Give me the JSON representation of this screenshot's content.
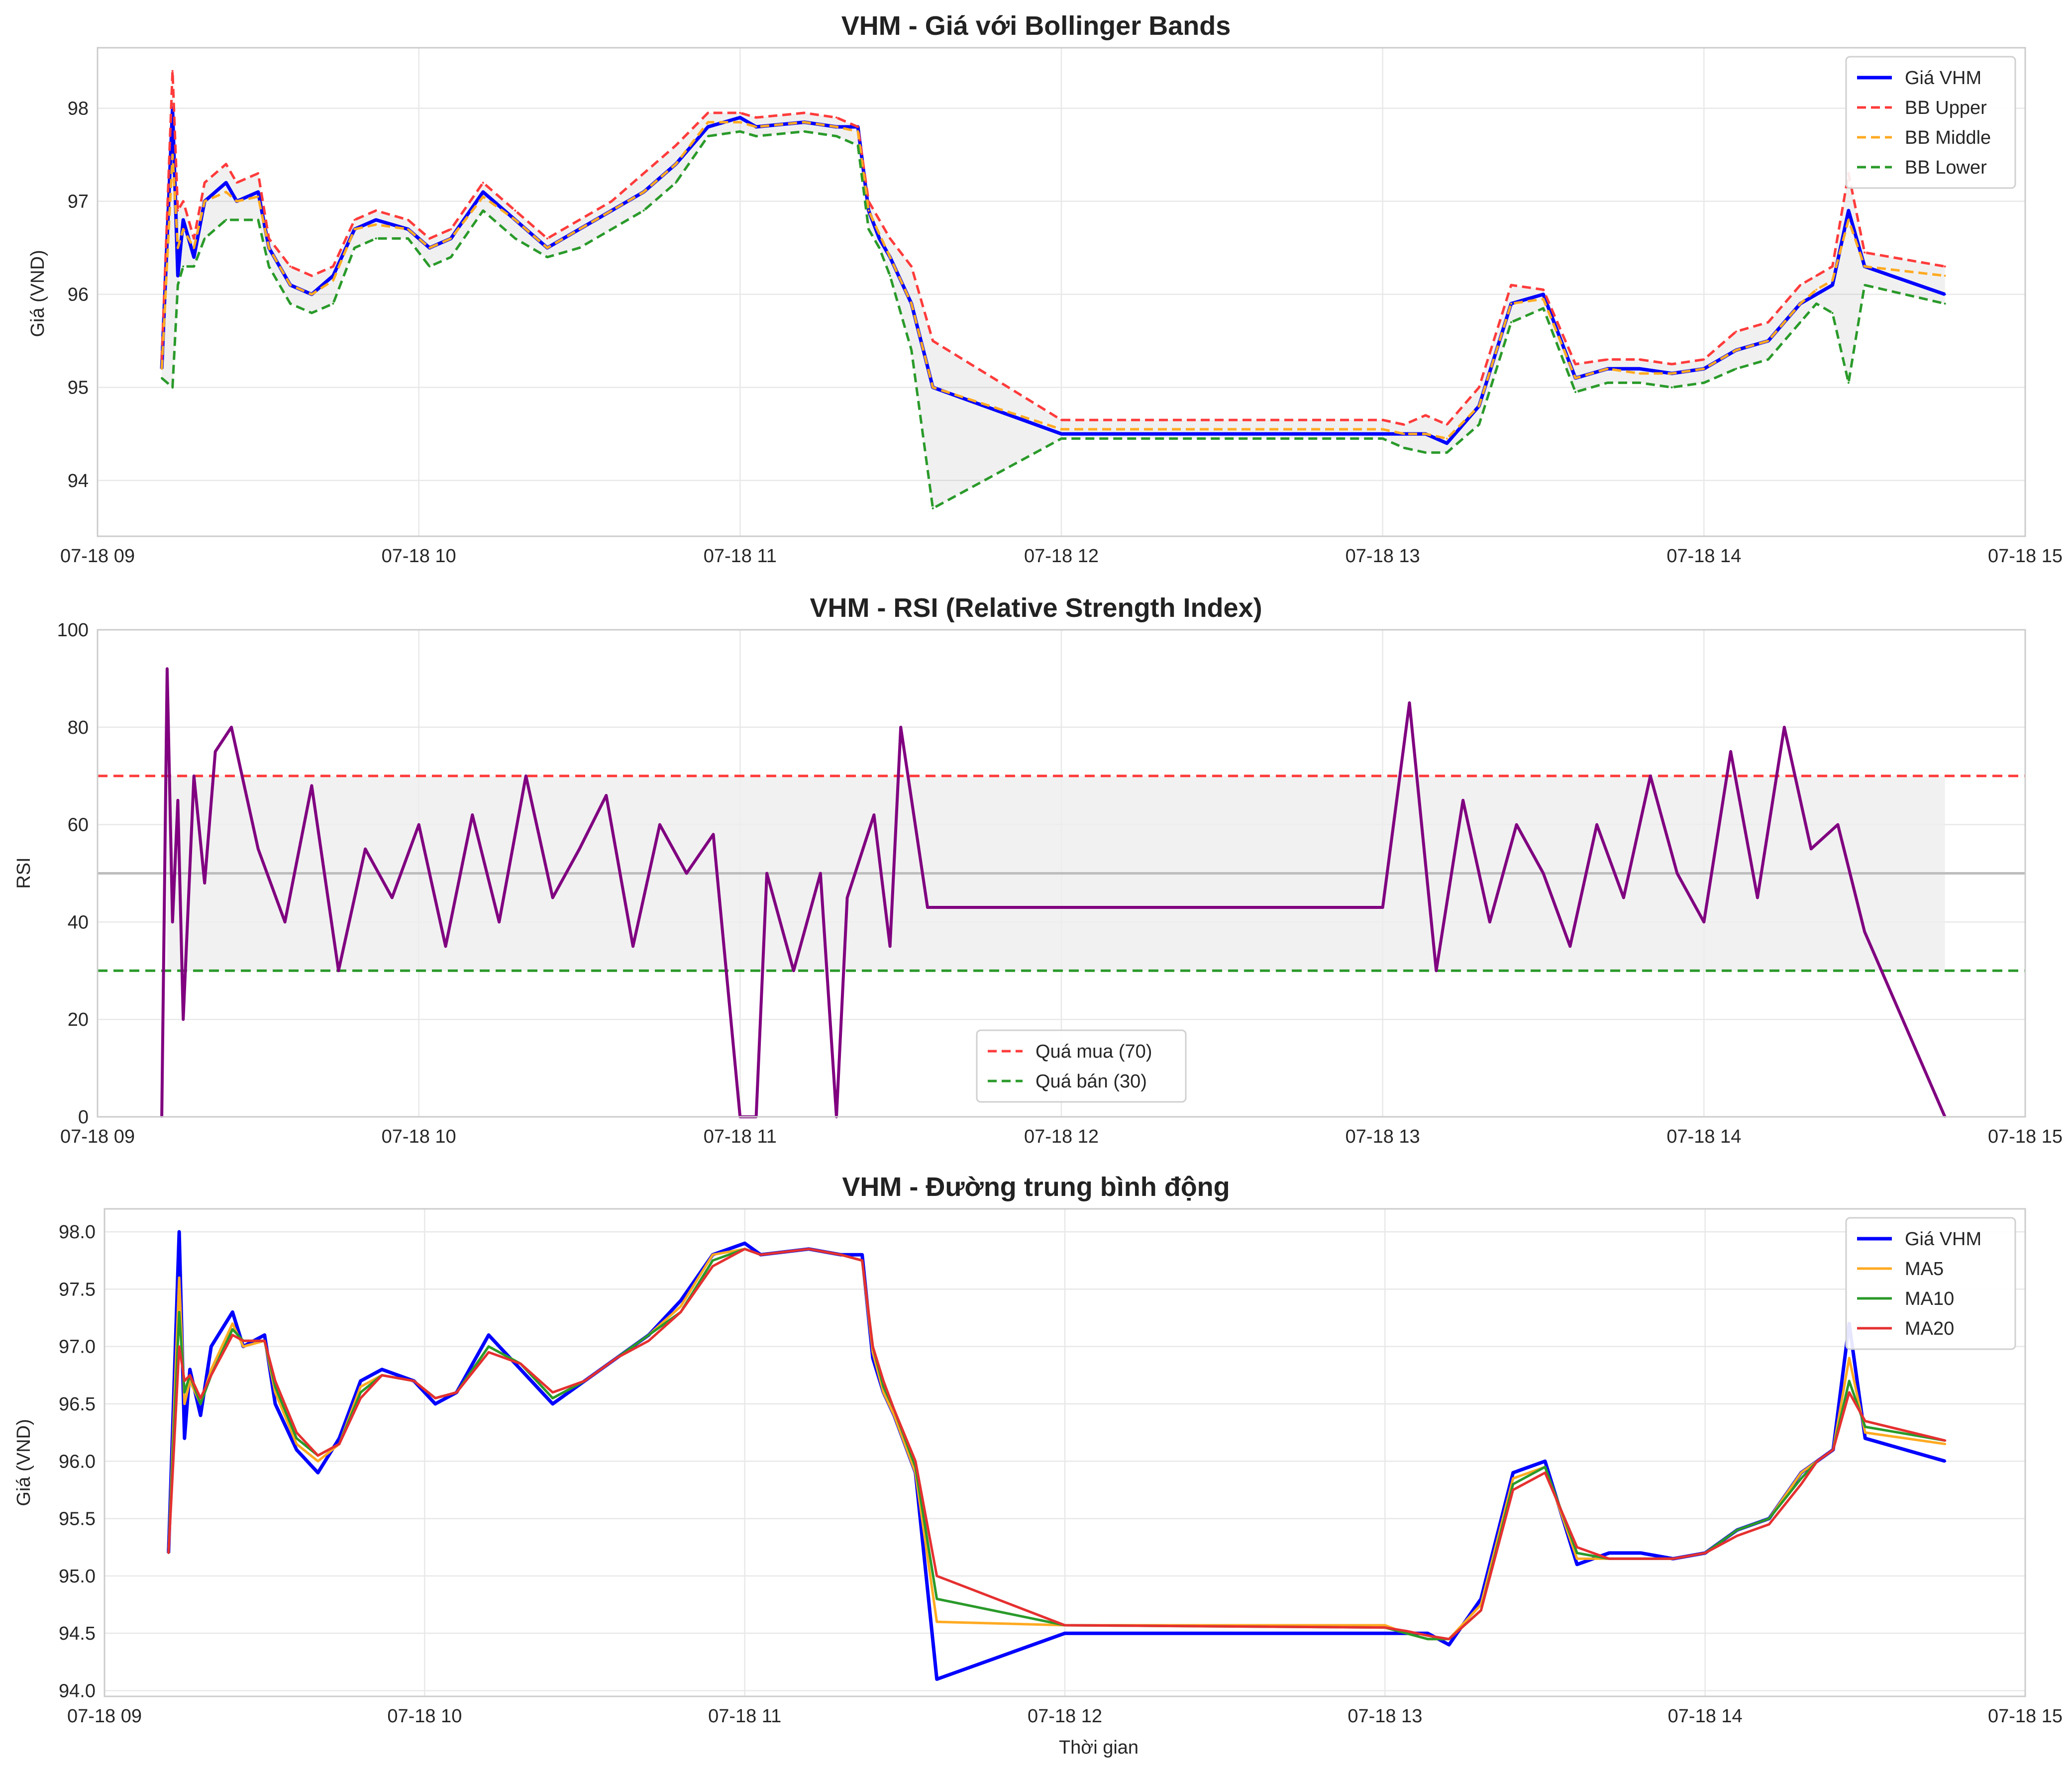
{
  "colors": {
    "price": "#0000ff",
    "bb_upper": "#ff3b3b",
    "bb_middle": "#ffaa22",
    "bb_lower": "#2a9a2a",
    "rsi": "#800080",
    "overbought": "#ff3b3b",
    "oversold": "#2a9a2a",
    "ma5": "#ffaa22",
    "ma10": "#2a9a2a",
    "ma20": "#e53030"
  },
  "chart_data": [
    {
      "type": "line",
      "title": "VHM - Giá với Bollinger Bands",
      "xlabel": "",
      "ylabel": "Giá (VND)",
      "xlim": [
        "07-18 09:00",
        "07-18 15:00"
      ],
      "ylim": [
        93.4,
        98.65
      ],
      "x_ticks": [
        "07-18 09",
        "07-18 10",
        "07-18 11",
        "07-18 12",
        "07-18 13",
        "07-18 14",
        "07-18 15"
      ],
      "y_ticks": [
        94,
        95,
        96,
        97,
        98
      ],
      "legend": {
        "position": "top-right",
        "entries": [
          "Giá VHM",
          "BB Upper",
          "BB Middle",
          "BB Lower"
        ]
      },
      "grid": true,
      "x": [
        "09:12",
        "09:14",
        "09:15",
        "09:16",
        "09:18",
        "09:20",
        "09:24",
        "09:26",
        "09:30",
        "09:32",
        "09:36",
        "09:40",
        "09:44",
        "09:48",
        "09:52",
        "09:58",
        "10:02",
        "10:06",
        "10:12",
        "10:18",
        "10:24",
        "10:30",
        "10:36",
        "10:42",
        "10:48",
        "10:54",
        "11:00",
        "11:03",
        "11:12",
        "11:18",
        "11:22",
        "11:24",
        "11:26",
        "11:28",
        "11:32",
        "11:36",
        "12:00",
        "13:00",
        "13:04",
        "13:08",
        "13:12",
        "13:18",
        "13:24",
        "13:30",
        "13:36",
        "13:42",
        "13:48",
        "13:54",
        "14:00",
        "14:06",
        "14:12",
        "14:18",
        "14:21",
        "14:24",
        "14:27",
        "14:30",
        "14:45"
      ],
      "series": [
        {
          "name": "Giá VHM",
          "values": [
            95.2,
            98.0,
            96.2,
            96.8,
            96.4,
            97.0,
            97.2,
            97.0,
            97.1,
            96.5,
            96.1,
            96.0,
            96.2,
            96.7,
            96.8,
            96.7,
            96.5,
            96.6,
            97.1,
            96.8,
            96.5,
            96.7,
            96.9,
            97.1,
            97.4,
            97.8,
            97.9,
            97.8,
            97.85,
            97.8,
            97.8,
            96.9,
            96.6,
            96.4,
            95.9,
            95.0,
            94.5,
            94.5,
            94.5,
            94.5,
            94.4,
            94.8,
            95.9,
            96.0,
            95.1,
            95.2,
            95.2,
            95.15,
            95.2,
            95.4,
            95.5,
            95.9,
            96.0,
            96.1,
            96.9,
            96.3,
            96.0
          ]
        },
        {
          "name": "BB Upper",
          "values": [
            95.3,
            98.4,
            96.9,
            97.0,
            96.6,
            97.2,
            97.4,
            97.2,
            97.3,
            96.6,
            96.3,
            96.2,
            96.3,
            96.8,
            96.9,
            96.8,
            96.6,
            96.7,
            97.2,
            96.9,
            96.6,
            96.8,
            97.0,
            97.3,
            97.6,
            97.95,
            97.95,
            97.9,
            97.95,
            97.9,
            97.8,
            97.0,
            96.8,
            96.6,
            96.3,
            95.5,
            94.65,
            94.65,
            94.6,
            94.7,
            94.6,
            95.0,
            96.1,
            96.05,
            95.25,
            95.3,
            95.3,
            95.25,
            95.3,
            95.6,
            95.7,
            96.1,
            96.2,
            96.3,
            97.3,
            96.45,
            96.3
          ]
        },
        {
          "name": "BB Middle",
          "values": [
            95.2,
            97.5,
            96.5,
            96.7,
            96.5,
            97.0,
            97.1,
            97.0,
            97.05,
            96.5,
            96.1,
            96.0,
            96.15,
            96.7,
            96.75,
            96.7,
            96.5,
            96.6,
            97.05,
            96.8,
            96.5,
            96.7,
            96.9,
            97.1,
            97.4,
            97.85,
            97.85,
            97.8,
            97.85,
            97.8,
            97.75,
            96.9,
            96.65,
            96.4,
            95.9,
            95.0,
            94.55,
            94.55,
            94.5,
            94.5,
            94.45,
            94.8,
            95.9,
            95.95,
            95.1,
            95.2,
            95.15,
            95.15,
            95.2,
            95.4,
            95.5,
            95.9,
            96.05,
            96.15,
            96.8,
            96.3,
            96.2
          ]
        },
        {
          "name": "BB Lower",
          "values": [
            95.1,
            95.0,
            96.1,
            96.3,
            96.3,
            96.6,
            96.8,
            96.8,
            96.8,
            96.3,
            95.9,
            95.8,
            95.9,
            96.5,
            96.6,
            96.6,
            96.3,
            96.4,
            96.9,
            96.6,
            96.4,
            96.5,
            96.7,
            96.9,
            97.2,
            97.7,
            97.75,
            97.7,
            97.75,
            97.7,
            97.6,
            96.7,
            96.5,
            96.2,
            95.4,
            93.7,
            94.45,
            94.45,
            94.35,
            94.3,
            94.3,
            94.6,
            95.7,
            95.85,
            94.95,
            95.05,
            95.05,
            95.0,
            95.05,
            95.2,
            95.3,
            95.7,
            95.9,
            95.8,
            95.05,
            96.1,
            95.9
          ]
        }
      ]
    },
    {
      "type": "line",
      "title": "VHM - RSI (Relative Strength Index)",
      "xlabel": "",
      "ylabel": "RSI",
      "xlim": [
        "07-18 09:00",
        "07-18 15:00"
      ],
      "ylim": [
        0,
        100
      ],
      "x_ticks": [
        "07-18 09",
        "07-18 10",
        "07-18 11",
        "07-18 12",
        "07-18 13",
        "07-18 14",
        "07-18 15"
      ],
      "y_ticks": [
        0,
        20,
        40,
        60,
        80,
        100
      ],
      "legend": {
        "position": "lower-center",
        "entries": [
          "Quá mua (70)",
          "Quá bán (30)"
        ]
      },
      "grid": true,
      "reference_lines": [
        {
          "label": "Quá mua (70)",
          "y": 70
        },
        {
          "label": "Quá bán (30)",
          "y": 30
        },
        {
          "label": "",
          "y": 50
        }
      ],
      "shaded_band": [
        30,
        70
      ],
      "x": [
        "09:12",
        "09:13",
        "09:14",
        "09:15",
        "09:16",
        "09:18",
        "09:20",
        "09:22",
        "09:25",
        "09:30",
        "09:35",
        "09:40",
        "09:45",
        "09:50",
        "09:55",
        "10:00",
        "10:05",
        "10:10",
        "10:15",
        "10:20",
        "10:25",
        "10:30",
        "10:35",
        "10:40",
        "10:45",
        "10:50",
        "10:55",
        "11:00",
        "11:03",
        "11:05",
        "11:10",
        "11:15",
        "11:18",
        "11:20",
        "11:25",
        "11:28",
        "11:30",
        "11:35",
        "12:00",
        "13:00",
        "13:05",
        "13:10",
        "13:15",
        "13:20",
        "13:25",
        "13:30",
        "13:35",
        "13:40",
        "13:45",
        "13:50",
        "13:55",
        "14:00",
        "14:05",
        "14:10",
        "14:15",
        "14:20",
        "14:25",
        "14:30",
        "14:45"
      ],
      "series": [
        {
          "name": "",
          "values": [
            0,
            92,
            40,
            65,
            20,
            70,
            48,
            75,
            80,
            55,
            40,
            68,
            30,
            55,
            45,
            60,
            35,
            62,
            40,
            70,
            45,
            55,
            66,
            35,
            60,
            50,
            58,
            0,
            0,
            50,
            30,
            50,
            0,
            45,
            62,
            35,
            80,
            43,
            43,
            43,
            85,
            30,
            65,
            40,
            60,
            50,
            35,
            60,
            45,
            70,
            50,
            40,
            75,
            45,
            80,
            55,
            60,
            38,
            0
          ]
        }
      ]
    },
    {
      "type": "line",
      "title": "VHM - Đường trung bình động",
      "xlabel": "Thời gian",
      "ylabel": "Giá (VND)",
      "xlim": [
        "07-18 09:00",
        "07-18 15:00"
      ],
      "ylim": [
        93.95,
        98.2
      ],
      "x_ticks": [
        "07-18 09",
        "07-18 10",
        "07-18 11",
        "07-18 12",
        "07-18 13",
        "07-18 14",
        "07-18 15"
      ],
      "y_ticks": [
        94.0,
        94.5,
        95.0,
        95.5,
        96.0,
        96.5,
        97.0,
        97.5,
        98.0
      ],
      "legend": {
        "position": "top-right",
        "entries": [
          "Giá VHM",
          "MA5",
          "MA10",
          "MA20"
        ]
      },
      "grid": true,
      "x": [
        "09:12",
        "09:14",
        "09:15",
        "09:16",
        "09:18",
        "09:20",
        "09:24",
        "09:26",
        "09:30",
        "09:32",
        "09:36",
        "09:40",
        "09:44",
        "09:48",
        "09:52",
        "09:58",
        "10:02",
        "10:06",
        "10:12",
        "10:18",
        "10:24",
        "10:30",
        "10:36",
        "10:42",
        "10:48",
        "10:54",
        "11:00",
        "11:03",
        "11:12",
        "11:18",
        "11:22",
        "11:24",
        "11:26",
        "11:28",
        "11:32",
        "11:36",
        "12:00",
        "13:00",
        "13:04",
        "13:08",
        "13:12",
        "13:18",
        "13:24",
        "13:30",
        "13:36",
        "13:42",
        "13:48",
        "13:54",
        "14:00",
        "14:06",
        "14:12",
        "14:18",
        "14:21",
        "14:24",
        "14:27",
        "14:30",
        "14:45"
      ],
      "series": [
        {
          "name": "Giá VHM",
          "values": [
            95.2,
            98.0,
            96.2,
            96.8,
            96.4,
            97.0,
            97.3,
            97.0,
            97.1,
            96.5,
            96.1,
            95.9,
            96.2,
            96.7,
            96.8,
            96.7,
            96.5,
            96.6,
            97.1,
            96.8,
            96.5,
            96.7,
            96.9,
            97.1,
            97.4,
            97.8,
            97.9,
            97.8,
            97.85,
            97.8,
            97.8,
            96.9,
            96.6,
            96.4,
            95.9,
            94.1,
            94.5,
            94.5,
            94.5,
            94.5,
            94.4,
            94.8,
            95.9,
            96.0,
            95.1,
            95.2,
            95.2,
            95.15,
            95.2,
            95.4,
            95.5,
            95.9,
            96.0,
            96.1,
            97.2,
            96.2,
            96.0
          ]
        },
        {
          "name": "MA5",
          "values": [
            95.2,
            97.6,
            96.5,
            96.7,
            96.5,
            96.8,
            97.2,
            97.0,
            97.05,
            96.6,
            96.15,
            96.0,
            96.15,
            96.65,
            96.75,
            96.7,
            96.55,
            96.6,
            97.0,
            96.85,
            96.55,
            96.7,
            96.9,
            97.1,
            97.35,
            97.8,
            97.85,
            97.8,
            97.85,
            97.8,
            97.75,
            96.95,
            96.6,
            96.4,
            95.9,
            94.6,
            94.57,
            94.57,
            94.5,
            94.45,
            94.45,
            94.75,
            95.85,
            95.95,
            95.15,
            95.15,
            95.15,
            95.15,
            95.2,
            95.4,
            95.5,
            95.9,
            96.0,
            96.1,
            96.9,
            96.25,
            96.15
          ]
        },
        {
          "name": "MA10",
          "values": [
            95.2,
            97.3,
            96.6,
            96.75,
            96.5,
            96.75,
            97.15,
            97.05,
            97.05,
            96.65,
            96.2,
            96.05,
            96.15,
            96.6,
            96.75,
            96.7,
            96.55,
            96.6,
            97.0,
            96.85,
            96.55,
            96.7,
            96.9,
            97.1,
            97.3,
            97.75,
            97.85,
            97.8,
            97.85,
            97.8,
            97.75,
            97.0,
            96.65,
            96.45,
            95.95,
            94.8,
            94.57,
            94.55,
            94.5,
            94.45,
            94.45,
            94.7,
            95.8,
            95.95,
            95.2,
            95.15,
            95.15,
            95.15,
            95.2,
            95.4,
            95.5,
            95.85,
            96.0,
            96.1,
            96.7,
            96.3,
            96.18
          ]
        },
        {
          "name": "MA20",
          "values": [
            95.2,
            97.0,
            96.7,
            96.75,
            96.55,
            96.75,
            97.1,
            97.05,
            97.05,
            96.7,
            96.25,
            96.05,
            96.15,
            96.55,
            96.75,
            96.7,
            96.55,
            96.6,
            96.95,
            96.85,
            96.6,
            96.7,
            96.9,
            97.05,
            97.3,
            97.7,
            97.85,
            97.8,
            97.85,
            97.8,
            97.75,
            97.0,
            96.7,
            96.45,
            96.0,
            95.0,
            94.57,
            94.55,
            94.52,
            94.48,
            94.45,
            94.7,
            95.75,
            95.9,
            95.25,
            95.15,
            95.15,
            95.15,
            95.2,
            95.35,
            95.45,
            95.8,
            96.0,
            96.1,
            96.6,
            96.35,
            96.18
          ]
        }
      ]
    }
  ]
}
